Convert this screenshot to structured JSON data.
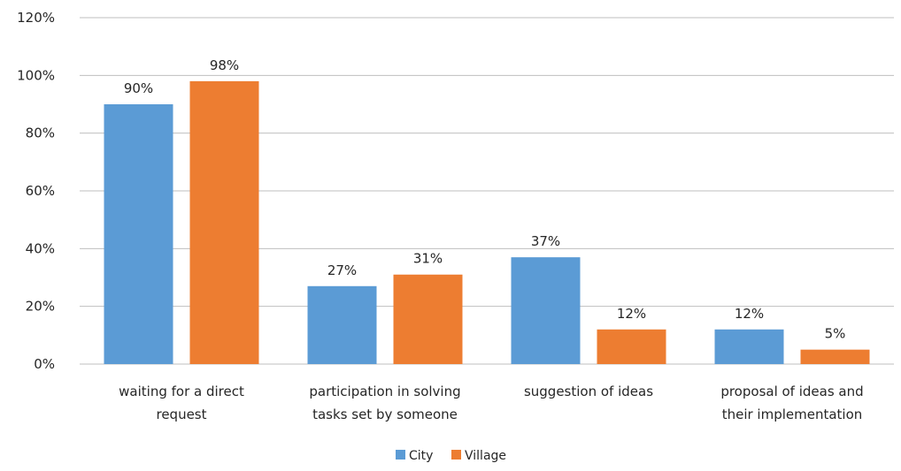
{
  "chart_data": {
    "type": "bar",
    "categories": [
      [
        "waiting for a direct",
        "request"
      ],
      [
        "participation in solving",
        "tasks set by someone"
      ],
      [
        "suggestion of ideas"
      ],
      [
        "proposal of ideas and",
        "their implementation"
      ]
    ],
    "series": [
      {
        "name": "City",
        "color": "#5B9BD5",
        "values": [
          90,
          27,
          37,
          12
        ],
        "labels": [
          "90%",
          "27%",
          "37%",
          "12%"
        ]
      },
      {
        "name": "Village",
        "color": "#ED7D31",
        "values": [
          98,
          31,
          12,
          5
        ],
        "labels": [
          "98%",
          "31%",
          "12%",
          "5%"
        ]
      }
    ],
    "y_ticks": [
      "0%",
      "20%",
      "40%",
      "60%",
      "80%",
      "100%",
      "120%"
    ],
    "ylim": [
      0,
      120
    ],
    "grid": true,
    "gridline_color": "#BFBFBF",
    "legend_position": "bottom-center"
  }
}
